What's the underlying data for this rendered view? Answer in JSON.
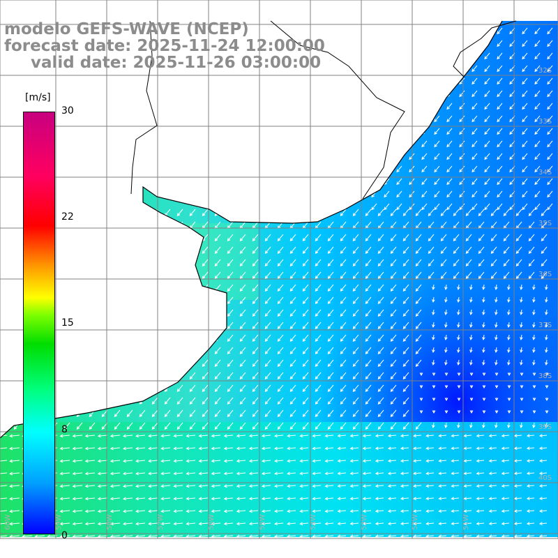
{
  "title": {
    "model": "modelo GEFS-WAVE (NCEP)",
    "forecast": "forecast date: 2025-11-24 12:00:00",
    "valid": "valid date: 2025-11-26 03:00:00"
  },
  "colorbar": {
    "unit": "[m/s]",
    "ticks": [
      {
        "label": "30",
        "value": 30
      },
      {
        "label": "22",
        "value": 22
      },
      {
        "label": "15",
        "value": 15
      },
      {
        "label": "8",
        "value": 8
      },
      {
        "label": "0",
        "value": 0
      }
    ]
  },
  "lat_labels": [
    "32S",
    "33S",
    "34S",
    "35S",
    "36S",
    "37S",
    "38S",
    "39S",
    "40S"
  ],
  "lon_labels": [
    "60W",
    "59W",
    "58W",
    "57W",
    "56W",
    "55W",
    "54W",
    "53W",
    "52W",
    "51W"
  ],
  "colors": {
    "ocean_near_shore": "#40f0c0",
    "ocean_mid": "#00d8ff",
    "ocean_deep": "#0060ff",
    "ocean_max": "#0020ff",
    "land": "#ffffff",
    "grid": "#808080",
    "coast": "#000000"
  }
}
